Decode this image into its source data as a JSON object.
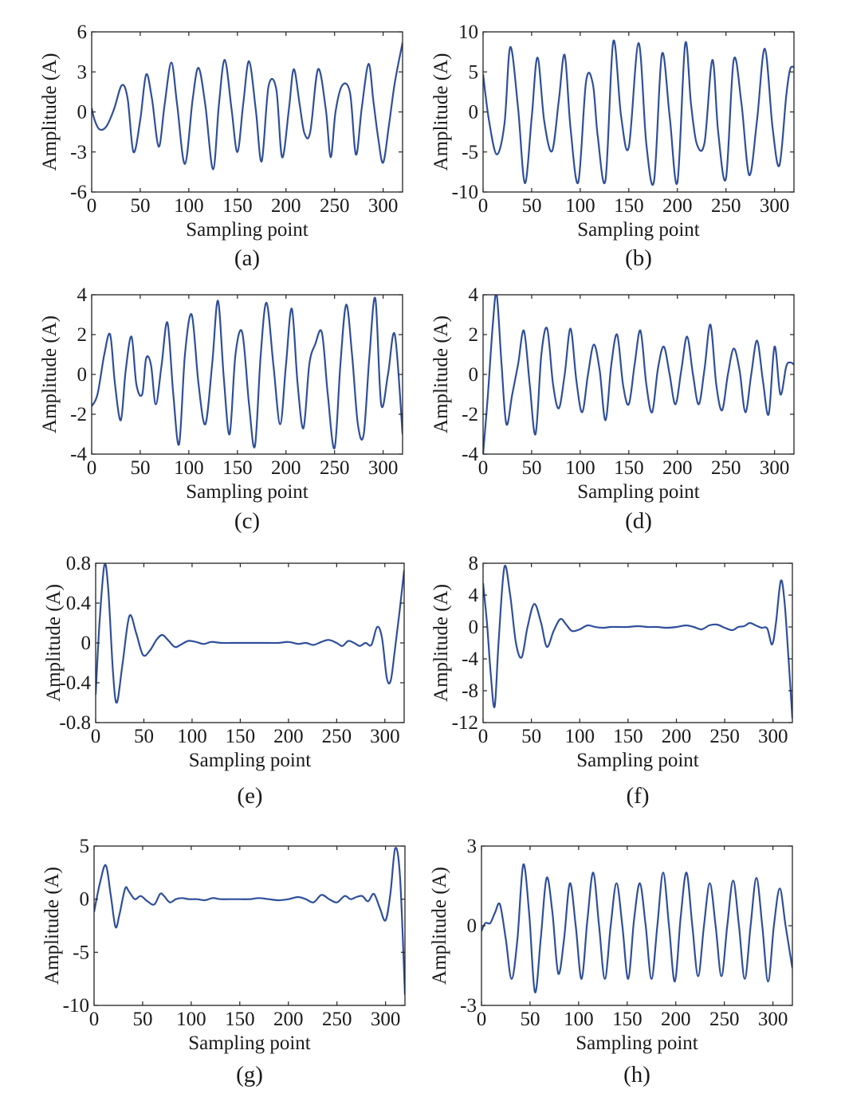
{
  "figure": {
    "line_color": "#2f4f9a",
    "axis_color": "#222222"
  },
  "chart_data": [
    {
      "type": "line",
      "caption": "(a)",
      "xlabel": "Sampling point",
      "ylabel": "Amplitude (A)",
      "xlim": [
        0,
        320
      ],
      "ylim": [
        -6,
        6
      ],
      "xticks": [
        "0",
        "50",
        "100",
        "150",
        "200",
        "250",
        "300"
      ],
      "yticks": [
        "-6",
        "-3",
        "0",
        "3",
        "6"
      ],
      "grid": false,
      "series": [
        {
          "x": [
            0,
            3,
            8,
            15,
            23,
            31,
            37,
            43,
            50,
            56,
            62,
            69,
            75,
            82,
            88,
            96,
            104,
            110,
            117,
            125,
            131,
            137,
            144,
            150,
            156,
            162,
            169,
            175,
            182,
            190,
            196,
            203,
            208,
            214,
            219,
            225,
            233,
            241,
            246,
            251,
            258,
            266,
            272,
            278,
            285,
            290,
            295,
            300,
            306,
            312,
            320
          ],
          "y": [
            0.3,
            -0.6,
            -1.3,
            -1.1,
            0.2,
            2.0,
            1.0,
            -3.0,
            -0.6,
            2.8,
            1.0,
            -2.6,
            0.5,
            3.7,
            0.5,
            -3.9,
            1.0,
            3.3,
            0.5,
            -4.3,
            0.6,
            3.9,
            0.2,
            -3.0,
            0.6,
            3.8,
            0.1,
            -3.7,
            1.9,
            1.7,
            -3.4,
            0.2,
            3.2,
            0.6,
            -1.6,
            -1.5,
            3.2,
            0.2,
            -3.4,
            0.0,
            2.0,
            1.4,
            -3.2,
            0.3,
            3.6,
            0.8,
            -2.0,
            -3.8,
            -1.0,
            2.2,
            5.2
          ]
        }
      ]
    },
    {
      "type": "line",
      "caption": "(b)",
      "xlabel": "Sampling point",
      "ylabel": "Amplitude (A)",
      "xlim": [
        0,
        320
      ],
      "ylim": [
        -10,
        10
      ],
      "xticks": [
        "0",
        "50",
        "100",
        "150",
        "200",
        "250",
        "300"
      ],
      "yticks": [
        "-10",
        "-5",
        "0",
        "5",
        "10"
      ],
      "grid": false,
      "series": [
        {
          "x": [
            0,
            6,
            14,
            22,
            28,
            36,
            43,
            50,
            56,
            63,
            71,
            78,
            84,
            90,
            98,
            106,
            113,
            118,
            126,
            134,
            142,
            150,
            160,
            168,
            176,
            184,
            192,
            200,
            208,
            214,
            220,
            228,
            236,
            242,
            250,
            258,
            266,
            274,
            282,
            290,
            298,
            305,
            312,
            316,
            320
          ],
          "y": [
            4.7,
            -1.0,
            -5.3,
            -1.5,
            8.1,
            0.5,
            -8.9,
            -0.8,
            6.8,
            -1.2,
            -4.9,
            1.5,
            7.1,
            -2.0,
            -8.8,
            3.8,
            3.5,
            -3.0,
            -8.5,
            8.8,
            -0.5,
            -4.4,
            8.6,
            -4.0,
            -8.6,
            7.2,
            -0.5,
            -8.8,
            8.5,
            1.0,
            -4.0,
            -3.8,
            6.5,
            -2.5,
            -8.3,
            6.5,
            1.0,
            -7.9,
            -1.0,
            7.9,
            -2.0,
            -6.7,
            2.0,
            5.3,
            5.6
          ]
        }
      ]
    },
    {
      "type": "line",
      "caption": "(c)",
      "xlabel": "Sampling point",
      "ylabel": "Amplitude (A)",
      "xlim": [
        0,
        320
      ],
      "ylim": [
        -4,
        4
      ],
      "xticks": [
        "0",
        "50",
        "100",
        "150",
        "200",
        "250",
        "300"
      ],
      "yticks": [
        "-4",
        "-2",
        "0",
        "2",
        "4"
      ],
      "grid": false,
      "series": [
        {
          "x": [
            0,
            6,
            13,
            19,
            24,
            30,
            35,
            41,
            46,
            52,
            56,
            61,
            66,
            72,
            78,
            84,
            90,
            96,
            103,
            110,
            117,
            124,
            130,
            136,
            142,
            148,
            155,
            162,
            168,
            174,
            180,
            187,
            194,
            200,
            206,
            212,
            218,
            224,
            230,
            237,
            243,
            250,
            256,
            262,
            268,
            274,
            280,
            286,
            292,
            298,
            305,
            312,
            320
          ],
          "y": [
            -1.6,
            -1.0,
            1.0,
            2.0,
            -0.5,
            -2.3,
            0.2,
            1.9,
            -0.5,
            -1.0,
            0.8,
            0.5,
            -1.5,
            0.5,
            2.6,
            -1.0,
            -3.5,
            1.0,
            3.0,
            -0.5,
            -2.5,
            0.5,
            3.7,
            -0.2,
            -3.0,
            1.0,
            2.1,
            -1.5,
            -3.6,
            1.0,
            3.6,
            0.5,
            -2.5,
            0.5,
            3.3,
            -0.5,
            -2.7,
            0.5,
            1.5,
            2.1,
            -1.0,
            -3.7,
            0.5,
            3.5,
            1.0,
            -2.5,
            -3.0,
            1.0,
            3.8,
            -1.5,
            0.0,
            2.0,
            -3.0
          ]
        }
      ]
    },
    {
      "type": "line",
      "caption": "(d)",
      "xlabel": "Sampling point",
      "ylabel": "Amplitude (A)",
      "xlim": [
        0,
        320
      ],
      "ylim": [
        -4,
        4
      ],
      "xticks": [
        "0",
        "50",
        "100",
        "150",
        "200",
        "250",
        "300"
      ],
      "yticks": [
        "-4",
        "-2",
        "0",
        "2",
        "4"
      ],
      "grid": false,
      "series": [
        {
          "x": [
            0,
            5,
            10,
            14,
            19,
            24,
            30,
            36,
            42,
            48,
            54,
            60,
            66,
            72,
            78,
            84,
            90,
            96,
            102,
            108,
            114,
            120,
            126,
            132,
            138,
            144,
            150,
            156,
            162,
            168,
            174,
            180,
            186,
            192,
            198,
            204,
            210,
            216,
            222,
            228,
            234,
            240,
            246,
            252,
            258,
            264,
            270,
            276,
            282,
            288,
            294,
            300,
            306,
            312,
            316,
            320
          ],
          "y": [
            -4.0,
            -1.0,
            2.5,
            4.0,
            0.5,
            -2.5,
            -1.0,
            0.5,
            2.2,
            -0.5,
            -3.0,
            1.0,
            2.3,
            -0.5,
            -1.7,
            0.0,
            2.3,
            -0.3,
            -1.9,
            0.0,
            1.5,
            0.2,
            -2.3,
            0.5,
            2.0,
            -0.5,
            -1.5,
            0.5,
            2.2,
            -0.5,
            -1.9,
            0.3,
            1.4,
            0.0,
            -1.5,
            0.2,
            1.9,
            0.0,
            -1.5,
            0.3,
            2.5,
            -0.5,
            -1.8,
            0.0,
            1.3,
            0.2,
            -1.9,
            0.0,
            1.7,
            -0.3,
            -2.0,
            1.4,
            -1.0,
            0.4,
            0.6,
            0.5
          ]
        }
      ]
    },
    {
      "type": "line",
      "caption": "(e)",
      "xlabel": "Sampling point",
      "ylabel": "Amplitude (A)",
      "xlim": [
        0,
        320
      ],
      "ylim": [
        -0.8,
        0.8
      ],
      "xticks": [
        "0",
        "50",
        "100",
        "150",
        "200",
        "250",
        "300"
      ],
      "yticks": [
        "-0.8",
        "-0.4",
        "0",
        "0.4",
        "0.8"
      ],
      "grid": false,
      "series": [
        {
          "x": [
            0,
            4,
            9,
            13,
            18,
            22,
            28,
            35,
            42,
            49,
            56,
            63,
            69,
            75,
            82,
            88,
            96,
            104,
            112,
            120,
            130,
            140,
            150,
            160,
            170,
            180,
            190,
            200,
            210,
            218,
            226,
            234,
            242,
            250,
            256,
            262,
            268,
            274,
            280,
            286,
            292,
            297,
            302,
            306,
            310,
            315,
            320
          ],
          "y": [
            -0.52,
            0.2,
            0.78,
            0.55,
            -0.3,
            -0.6,
            -0.2,
            0.27,
            0.1,
            -0.12,
            -0.08,
            0.03,
            0.08,
            0.03,
            -0.04,
            -0.02,
            0.02,
            0.01,
            -0.01,
            0.01,
            0.0,
            0.0,
            0.0,
            0.0,
            0.0,
            0.0,
            0.0,
            0.01,
            -0.01,
            0.0,
            -0.02,
            0.01,
            0.03,
            0.0,
            -0.03,
            0.02,
            0.0,
            -0.03,
            0.0,
            -0.02,
            0.16,
            0.05,
            -0.35,
            -0.38,
            -0.1,
            0.3,
            0.73
          ]
        }
      ]
    },
    {
      "type": "line",
      "caption": "(f)",
      "xlabel": "Sampling point",
      "ylabel": "Amplitude (A)",
      "xlim": [
        0,
        320
      ],
      "ylim": [
        -12,
        8
      ],
      "xticks": [
        "0",
        "50",
        "100",
        "150",
        "200",
        "250",
        "300"
      ],
      "yticks": [
        "-12",
        "-8",
        "-4",
        "0",
        "4",
        "8"
      ],
      "grid": false,
      "series": [
        {
          "x": [
            0,
            4,
            8,
            12,
            16,
            22,
            28,
            34,
            40,
            46,
            53,
            60,
            66,
            73,
            80,
            86,
            92,
            100,
            108,
            116,
            124,
            132,
            140,
            150,
            160,
            170,
            180,
            190,
            200,
            210,
            218,
            226,
            234,
            242,
            250,
            258,
            264,
            270,
            276,
            282,
            288,
            294,
            299,
            303,
            308,
            312,
            316,
            320
          ],
          "y": [
            5.5,
            0.5,
            -6.0,
            -10.0,
            -2.0,
            7.5,
            4.0,
            -2.0,
            -3.8,
            0.0,
            2.9,
            0.5,
            -2.5,
            -0.5,
            1.0,
            0.3,
            -0.5,
            -0.3,
            0.2,
            0.0,
            -0.1,
            0.0,
            0.0,
            0.0,
            0.1,
            0.0,
            0.0,
            -0.1,
            0.0,
            0.2,
            0.0,
            -0.3,
            0.2,
            0.3,
            -0.1,
            -0.4,
            0.0,
            0.1,
            0.5,
            0.2,
            -0.1,
            -0.2,
            -2.2,
            0.5,
            5.8,
            3.0,
            -4.0,
            -11.5
          ]
        }
      ]
    },
    {
      "type": "line",
      "caption": "(g)",
      "xlabel": "Sampling point",
      "ylabel": "Amplitude (A)",
      "xlim": [
        0,
        320
      ],
      "ylim": [
        -10,
        5
      ],
      "xticks": [
        "0",
        "50",
        "100",
        "150",
        "200",
        "250",
        "300"
      ],
      "yticks": [
        "-10",
        "-5",
        "0",
        "5"
      ],
      "grid": false,
      "series": [
        {
          "x": [
            0,
            6,
            12,
            17,
            22,
            26,
            32,
            36,
            42,
            48,
            55,
            62,
            68,
            72,
            78,
            84,
            90,
            98,
            106,
            114,
            122,
            130,
            140,
            150,
            160,
            170,
            180,
            190,
            200,
            210,
            218,
            226,
            234,
            242,
            250,
            258,
            264,
            270,
            276,
            282,
            288,
            294,
            300,
            305,
            310,
            315,
            320
          ],
          "y": [
            -1.2,
            1.5,
            3.2,
            0.5,
            -2.6,
            -1.5,
            1.0,
            0.7,
            0.0,
            0.3,
            -0.2,
            -0.5,
            0.5,
            0.3,
            -0.3,
            0.0,
            0.1,
            0.0,
            0.0,
            -0.1,
            0.1,
            0.0,
            0.0,
            0.0,
            0.0,
            0.1,
            0.0,
            -0.1,
            0.0,
            0.2,
            0.0,
            -0.3,
            0.4,
            0.0,
            -0.3,
            0.3,
            0.0,
            0.2,
            0.3,
            -0.2,
            0.5,
            -0.8,
            -2.0,
            0.5,
            4.8,
            2.0,
            -9.0
          ]
        }
      ]
    },
    {
      "type": "line",
      "caption": "(h)",
      "xlabel": "Sampling point",
      "ylabel": "Amplitude (A)",
      "xlim": [
        0,
        320
      ],
      "ylim": [
        -3,
        3
      ],
      "xticks": [
        "0",
        "50",
        "100",
        "150",
        "200",
        "250",
        "300"
      ],
      "yticks": [
        "-3",
        "0",
        "3"
      ],
      "grid": false,
      "series": [
        {
          "x": [
            0,
            4,
            9,
            14,
            19,
            25,
            31,
            37,
            43,
            49,
            55,
            61,
            67,
            73,
            79,
            85,
            91,
            97,
            103,
            109,
            115,
            121,
            127,
            133,
            139,
            145,
            151,
            157,
            163,
            169,
            175,
            181,
            187,
            193,
            199,
            205,
            211,
            217,
            223,
            229,
            235,
            241,
            247,
            253,
            259,
            265,
            271,
            277,
            283,
            289,
            295,
            301,
            307,
            313,
            320
          ],
          "y": [
            -0.2,
            0.1,
            0.1,
            0.5,
            0.8,
            -0.5,
            -2.0,
            -0.5,
            2.3,
            0.5,
            -2.5,
            -0.5,
            1.8,
            0.5,
            -1.8,
            -0.5,
            1.6,
            0.0,
            -2.0,
            0.2,
            2.0,
            0.0,
            -2.0,
            0.0,
            1.6,
            0.0,
            -2.0,
            0.2,
            1.6,
            0.0,
            -2.0,
            0.0,
            2.0,
            0.0,
            -2.1,
            0.3,
            2.0,
            0.0,
            -1.9,
            0.0,
            1.6,
            0.0,
            -1.9,
            0.0,
            1.7,
            0.0,
            -2.0,
            0.0,
            1.8,
            0.0,
            -2.1,
            0.0,
            1.4,
            0.0,
            -1.6
          ]
        }
      ]
    }
  ]
}
